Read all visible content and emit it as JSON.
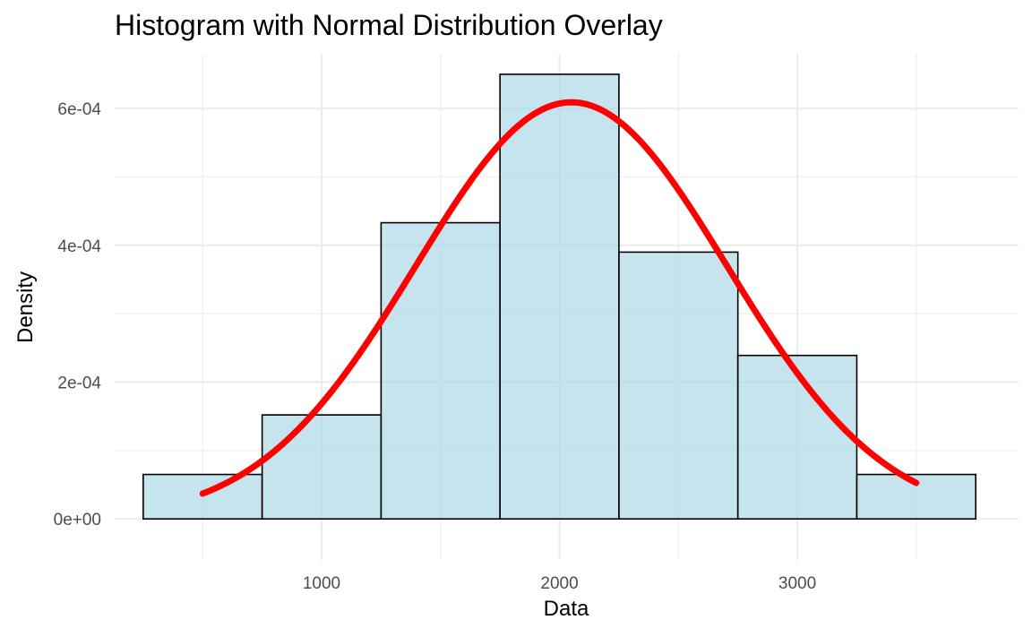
{
  "chart_data": {
    "type": "bar",
    "title": "Histogram with Normal Distribution Overlay",
    "xlabel": "Data",
    "ylabel": "Density",
    "xlim": [
      130,
      3930
    ],
    "ylim": [
      -6e-05,
      0.00068
    ],
    "x_ticks": [
      1000,
      2000,
      3000
    ],
    "x_tick_labels": [
      "1000",
      "2000",
      "3000"
    ],
    "y_ticks": [
      0,
      0.0002,
      0.0004,
      0.0006
    ],
    "y_tick_labels": [
      "0e+00",
      "2e-04",
      "4e-04",
      "6e-04"
    ],
    "grid": true,
    "bins": [
      {
        "x0": 250,
        "x1": 750,
        "density": 6.5e-05
      },
      {
        "x0": 750,
        "x1": 1250,
        "density": 0.000152
      },
      {
        "x0": 1250,
        "x1": 1750,
        "density": 0.000433
      },
      {
        "x0": 1750,
        "x1": 2250,
        "density": 0.00065
      },
      {
        "x0": 2250,
        "x1": 2750,
        "density": 0.00039
      },
      {
        "x0": 2750,
        "x1": 3250,
        "density": 0.000239
      },
      {
        "x0": 3250,
        "x1": 3750,
        "density": 6.5e-05
      }
    ],
    "curve": {
      "type": "normal-density",
      "mean": 2050,
      "sd": 655,
      "x_range": [
        500,
        3500
      ]
    },
    "colors": {
      "bar_fill": "#add8e6",
      "bar_fill_opacity": 0.7,
      "bar_stroke": "#000000",
      "curve": "#ff0000",
      "grid": "#ebebeb"
    }
  }
}
